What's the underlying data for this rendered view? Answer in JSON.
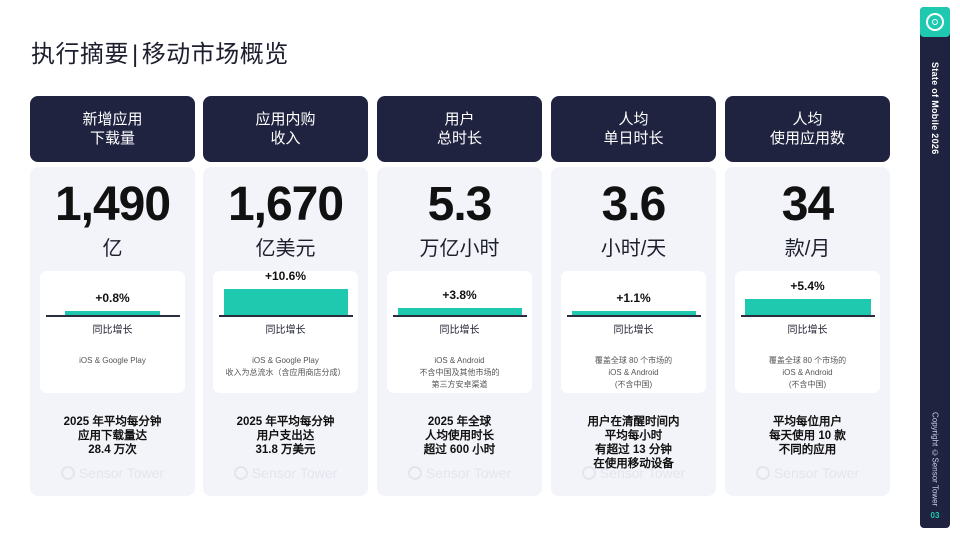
{
  "page": {
    "title_left": "执行摘要",
    "title_sep": "|",
    "title_right": "移动市场概览"
  },
  "sidebar": {
    "title": "State of Mobile 2026",
    "copyright": "Copyright ©Sensor Tower",
    "page_number": "03"
  },
  "watermark": "Sensor Tower",
  "colors": {
    "accent": "#1ec9b0",
    "header_bg": "#1f2340",
    "card_bg": "#f3f4f9"
  },
  "columns": [
    {
      "header": "新增应用\n下载量",
      "value": "1,490",
      "unit": "亿",
      "growth": "+0.8%",
      "growth_fraction": 0.008,
      "growth_label": "同比增长",
      "note": "iOS & Google Play",
      "summary": "2025 年平均每分钟\n应用下载量达\n28.4 万次"
    },
    {
      "header": "应用内购\n收入",
      "value": "1,670",
      "unit": "亿美元",
      "growth": "+10.6%",
      "growth_fraction": 0.106,
      "growth_label": "同比增长",
      "note": "iOS & Google Play\n收入为总流水（含应用商店分成）",
      "summary": "2025 年平均每分钟\n用户支出达\n31.8 万美元"
    },
    {
      "header": "用户\n总时长",
      "value": "5.3",
      "unit": "万亿小时",
      "growth": "+3.8%",
      "growth_fraction": 0.038,
      "growth_label": "同比增长",
      "note": "iOS & Android\n不含中国及其他市场的\n第三方安卓渠道",
      "summary": "2025 年全球\n人均使用时长\n超过 600 小时"
    },
    {
      "header": "人均\n单日时长",
      "value": "3.6",
      "unit": "小时/天",
      "growth": "+1.1%",
      "growth_fraction": 0.011,
      "growth_label": "同比增长",
      "note": "覆盖全球 80 个市场的\niOS & Android\n(不含中国)",
      "summary": "用户在清醒时间内\n平均每小时\n有超过 13 分钟\n在使用移动设备"
    },
    {
      "header": "人均\n使用应用数",
      "value": "34",
      "unit": "款/月",
      "growth": "+5.4%",
      "growth_fraction": 0.054,
      "growth_label": "同比增长",
      "note": "覆盖全球 80 个市场的\niOS & Android\n(不含中国)",
      "summary": "平均每位用户\n每天使用 10 款\n不同的应用"
    }
  ]
}
